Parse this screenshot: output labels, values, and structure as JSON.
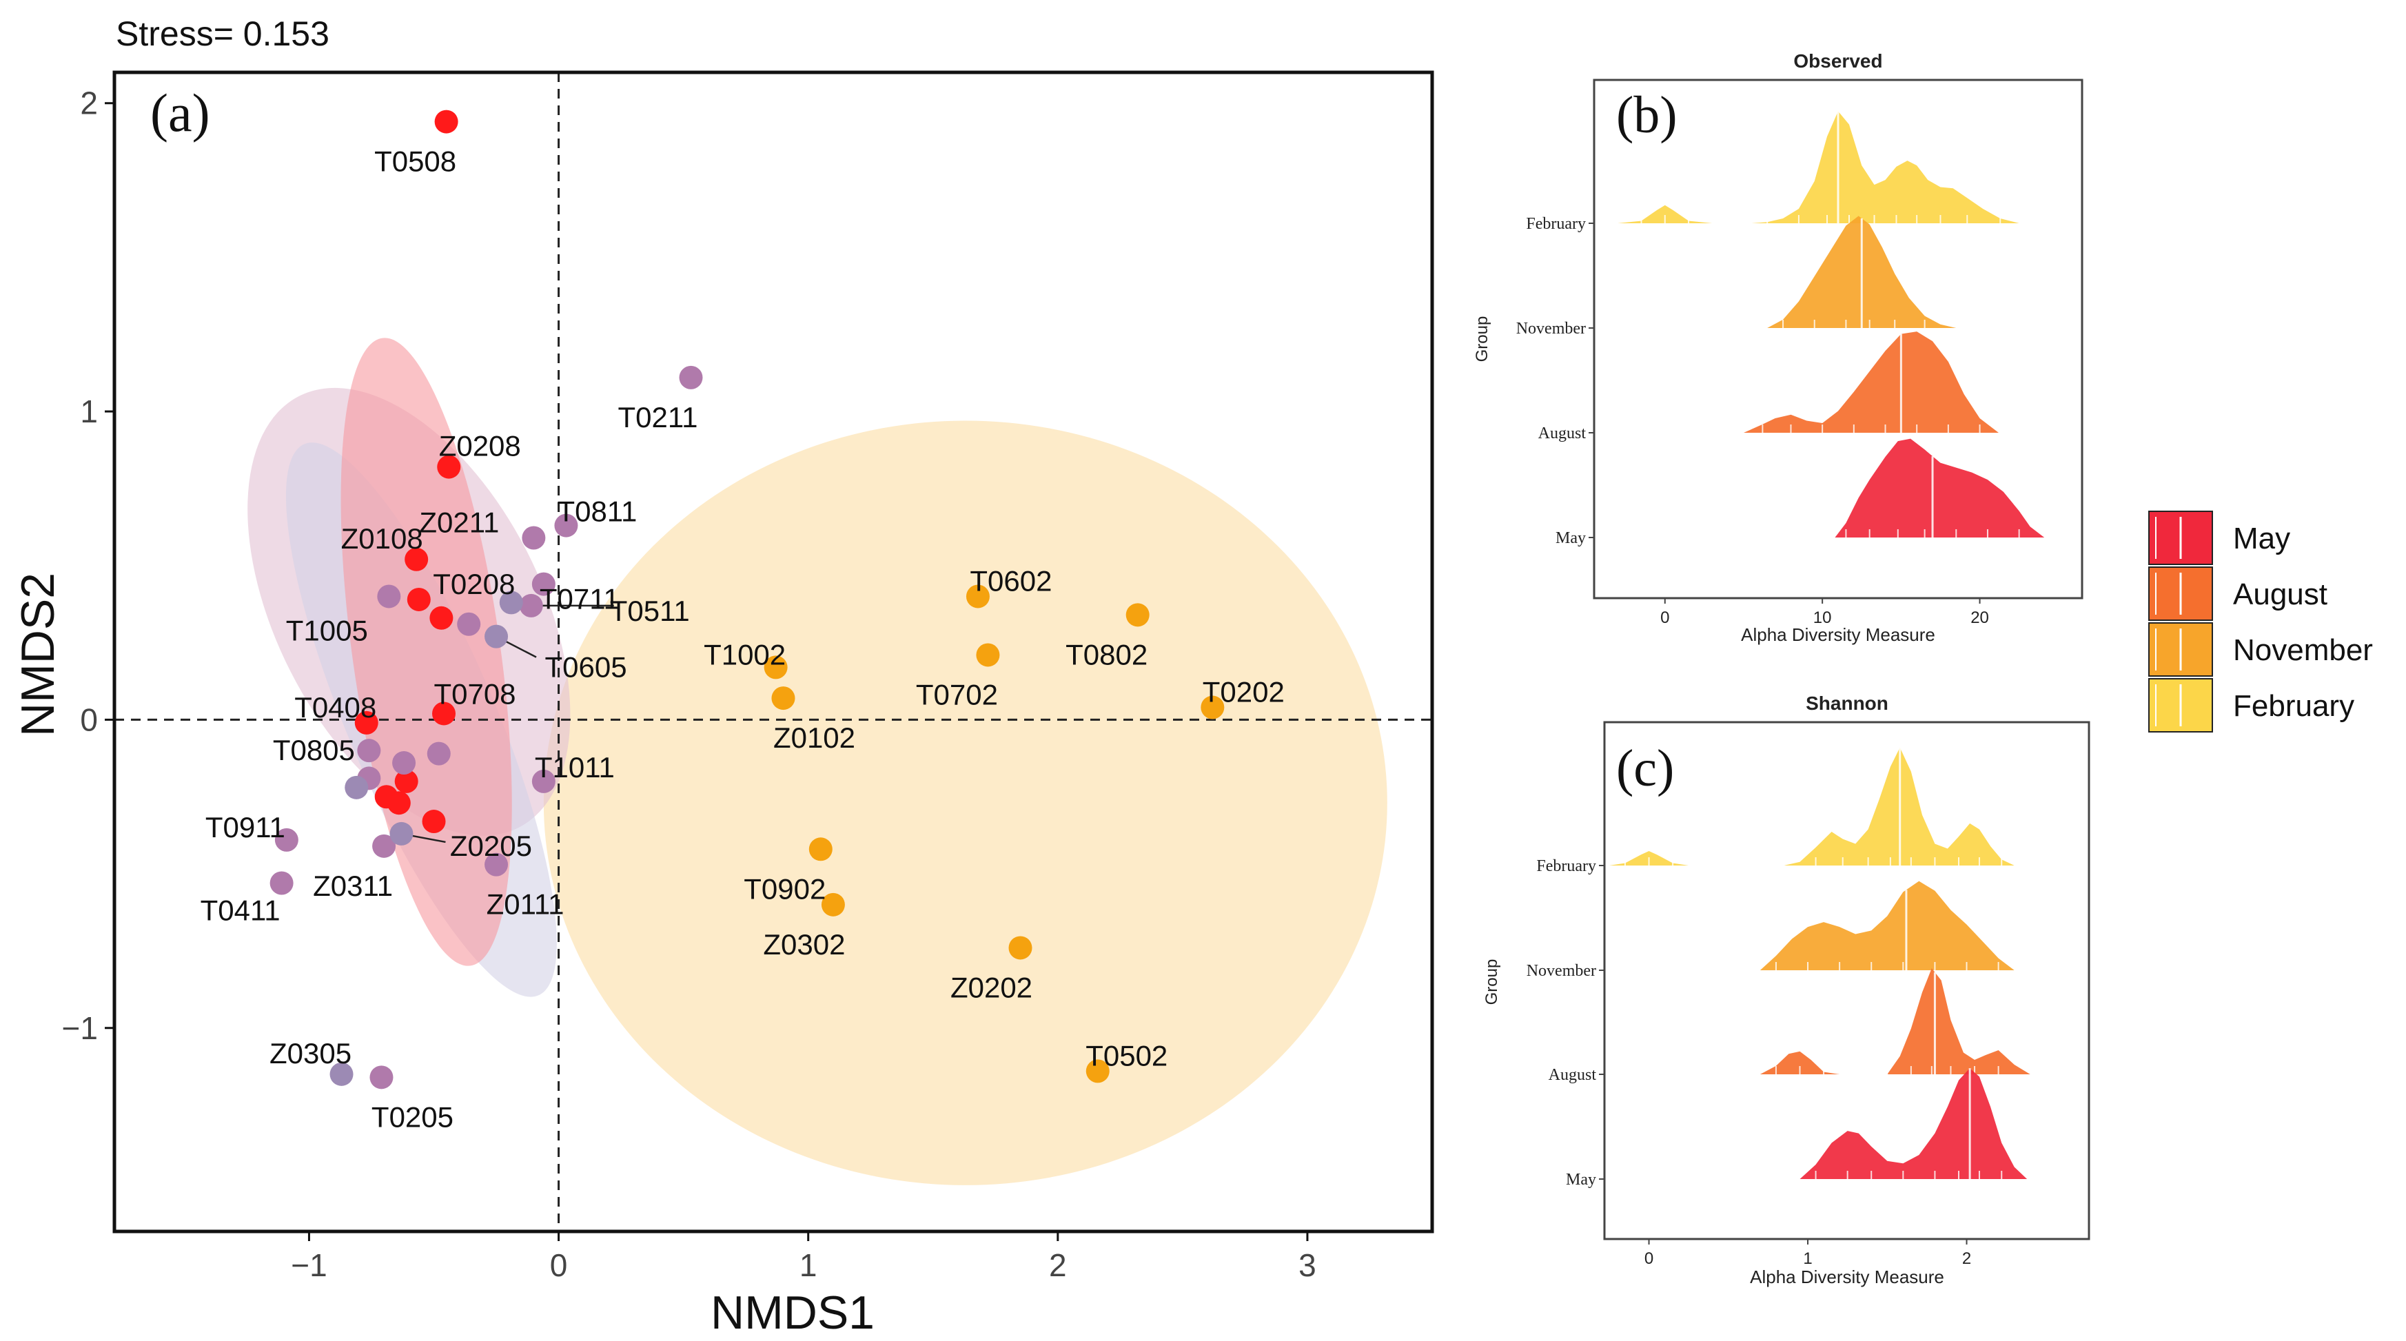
{
  "colors": {
    "May": "#f0283c",
    "August": "#f56f2e",
    "November": "#f7a52b",
    "February": "#fcd649",
    "orange_points": "#f5a20f",
    "red_points": "#ff1a1a",
    "purple_points": "#b07aab",
    "slate_points": "#9c8ab4",
    "ellipse_red": "#f79aa0",
    "ellipse_pink": "#e3c2d4",
    "ellipse_lavender": "#d4d2e6",
    "ellipse_orange": "#fde7bf"
  },
  "chart_data": [
    {
      "id": "a",
      "type": "scatter",
      "panel_label": "(a)",
      "stress_label": "Stress= 0.153",
      "xlabel": "NMDS1",
      "ylabel": "NMDS2",
      "xlim": [
        -1.78,
        3.5
      ],
      "ylim": [
        -1.66,
        2.1
      ],
      "xticks": [
        -1,
        0,
        1,
        2,
        3
      ],
      "xtick_labels": [
        "−1",
        "0",
        "1",
        "2",
        "3"
      ],
      "yticks": [
        -1,
        0,
        1,
        2
      ],
      "ytick_labels": [
        "−1",
        "0",
        "1",
        "2"
      ],
      "reference_lines": {
        "x": 0,
        "y": 0,
        "style": "dashed"
      },
      "ellipses": [
        {
          "cx": 1.63,
          "cy": -0.27,
          "rx": 1.69,
          "ry": 1.24,
          "angle": 0,
          "color": "ellipse_orange"
        },
        {
          "cx": -0.6,
          "cy": 0.35,
          "rx": 0.97,
          "ry": 0.43,
          "angle": 117,
          "color": "ellipse_pink"
        },
        {
          "cx": -0.55,
          "cy": 0.0,
          "rx": 1.2,
          "ry": 0.24,
          "angle": 113,
          "color": "ellipse_lavender"
        },
        {
          "cx": -0.53,
          "cy": 0.22,
          "rx": 1.27,
          "ry": 0.24,
          "angle": 98,
          "color": "ellipse_red"
        }
      ],
      "series": [
        {
          "name": "orange",
          "color": "orange_points",
          "points": [
            {
              "label": "T0602",
              "x": 1.68,
              "y": 0.4
            },
            {
              "label": "T0802",
              "x": 2.32,
              "y": 0.34
            },
            {
              "label": "T1002",
              "x": 0.87,
              "y": 0.17
            },
            {
              "label": "T0702",
              "x": 1.72,
              "y": 0.21
            },
            {
              "label": "T0202",
              "x": 2.62,
              "y": 0.04
            },
            {
              "label": "Z0102",
              "x": 0.9,
              "y": 0.07
            },
            {
              "label": "T0902",
              "x": 1.05,
              "y": -0.42
            },
            {
              "label": "Z0302",
              "x": 1.1,
              "y": -0.6
            },
            {
              "label": "Z0202",
              "x": 1.85,
              "y": -0.74
            },
            {
              "label": "T0502",
              "x": 2.16,
              "y": -1.14
            }
          ]
        },
        {
          "name": "red",
          "color": "red_points",
          "points": [
            {
              "label": "T0508",
              "x": -0.45,
              "y": 1.94
            },
            {
              "label": "Z0208",
              "x": -0.44,
              "y": 0.82
            },
            {
              "label": "Z0108",
              "x": -0.57,
              "y": 0.52
            },
            {
              "label": "T0208",
              "x": -0.56,
              "y": 0.39
            },
            {
              "label": "",
              "x": -0.47,
              "y": 0.33
            },
            {
              "label": "T0708",
              "x": -0.46,
              "y": 0.02
            },
            {
              "label": "T0408",
              "x": -0.77,
              "y": -0.01
            },
            {
              "label": "",
              "x": -0.61,
              "y": -0.2
            },
            {
              "label": "",
              "x": -0.69,
              "y": -0.25
            },
            {
              "label": "",
              "x": -0.64,
              "y": -0.27
            },
            {
              "label": "",
              "x": -0.5,
              "y": -0.33
            }
          ]
        },
        {
          "name": "purple",
          "color": "purple_points",
          "points": [
            {
              "label": "T0211",
              "x": 0.53,
              "y": 1.11
            },
            {
              "label": "T0811",
              "x": 0.03,
              "y": 0.63
            },
            {
              "label": "Z0211",
              "x": -0.1,
              "y": 0.59
            },
            {
              "label": "T0711",
              "x": -0.06,
              "y": 0.44
            },
            {
              "label": "T0511",
              "x": -0.11,
              "y": 0.37
            },
            {
              "label": "T1005",
              "x": -0.68,
              "y": 0.4
            },
            {
              "label": "",
              "x": -0.36,
              "y": 0.31
            },
            {
              "label": "T1011",
              "x": -0.06,
              "y": -0.2
            },
            {
              "label": "",
              "x": -0.48,
              "y": -0.11
            },
            {
              "label": "",
              "x": -0.62,
              "y": -0.14
            },
            {
              "label": "T0805",
              "x": -0.76,
              "y": -0.1
            },
            {
              "label": "",
              "x": -0.76,
              "y": -0.19
            },
            {
              "label": "T0911",
              "x": -1.09,
              "y": -0.39
            },
            {
              "label": "Z0311",
              "x": -0.7,
              "y": -0.41
            },
            {
              "label": "Z0111",
              "x": -0.25,
              "y": -0.47
            },
            {
              "label": "T0411",
              "x": -1.11,
              "y": -0.53
            },
            {
              "label": "T0205",
              "x": -0.71,
              "y": -1.16
            }
          ]
        },
        {
          "name": "slate",
          "color": "slate_points",
          "points": [
            {
              "label": "",
              "x": -0.19,
              "y": 0.38
            },
            {
              "label": "T0605",
              "x": -0.25,
              "y": 0.27
            },
            {
              "label": "",
              "x": -0.81,
              "y": -0.22
            },
            {
              "label": "Z0205",
              "x": -0.63,
              "y": -0.37
            },
            {
              "label": "Z0305",
              "x": -0.87,
              "y": -1.15
            }
          ]
        }
      ]
    },
    {
      "id": "b",
      "type": "area",
      "subtype": "ridgeline",
      "title": "Observed",
      "panel_label": "(b)",
      "xlabel": "Alpha Diversity Measure",
      "ylabel": "Group",
      "xlim": [
        -4.5,
        26.5
      ],
      "xticks": [
        0,
        10,
        20
      ],
      "xtick_labels": [
        "0",
        "10",
        "20"
      ],
      "groups": [
        "February",
        "November",
        "August",
        "May"
      ],
      "series": [
        {
          "name": "February",
          "color": "February",
          "median": 11,
          "scale": 1.15,
          "x": [
            -3,
            -1.5,
            -0.5,
            0,
            0.5,
            1.5,
            3,
            4.5,
            5.5,
            6.5,
            7.5,
            8.5,
            9.5,
            10.3,
            11,
            11.7,
            12.5,
            13.3,
            14,
            14.7,
            15.4,
            16,
            16.7,
            17.5,
            18.3,
            19.2,
            20.2,
            21.3,
            22.5
          ],
          "y": [
            0,
            0.02,
            0.11,
            0.15,
            0.11,
            0.02,
            0,
            0,
            0,
            0.01,
            0.04,
            0.12,
            0.35,
            0.72,
            0.93,
            0.82,
            0.48,
            0.32,
            0.36,
            0.47,
            0.52,
            0.48,
            0.36,
            0.3,
            0.29,
            0.21,
            0.12,
            0.04,
            0
          ]
        },
        {
          "name": "November",
          "color": "November",
          "median": 12.5,
          "scale": 1.15,
          "x": [
            6.5,
            7.5,
            8.5,
            9.5,
            10.5,
            11.5,
            12.3,
            13,
            13.8,
            14.6,
            15.5,
            16.5,
            17.5,
            18.5
          ],
          "y": [
            0,
            0.07,
            0.22,
            0.43,
            0.64,
            0.85,
            0.93,
            0.86,
            0.67,
            0.45,
            0.25,
            0.1,
            0.03,
            0
          ]
        },
        {
          "name": "August",
          "color": "August",
          "median": 15,
          "scale": 1.15,
          "x": [
            5,
            6.2,
            7,
            8,
            9,
            10,
            11,
            12,
            13,
            14,
            15,
            16,
            17,
            18,
            19,
            20,
            21.2
          ],
          "y": [
            0,
            0.07,
            0.12,
            0.15,
            0.1,
            0.08,
            0.18,
            0.34,
            0.51,
            0.68,
            0.82,
            0.84,
            0.76,
            0.59,
            0.32,
            0.12,
            0
          ]
        },
        {
          "name": "May",
          "color": "May",
          "median": 17,
          "scale": 1.15,
          "x": [
            10.8,
            11.5,
            12.3,
            13,
            14,
            14.8,
            15.6,
            16.5,
            17.5,
            18.5,
            19.5,
            20.5,
            21.5,
            22.5,
            23.2,
            24.1
          ],
          "y": [
            0,
            0.12,
            0.33,
            0.48,
            0.67,
            0.8,
            0.82,
            0.73,
            0.62,
            0.58,
            0.54,
            0.48,
            0.38,
            0.22,
            0.09,
            0
          ]
        }
      ]
    },
    {
      "id": "c",
      "type": "area",
      "subtype": "ridgeline",
      "title": "Shannon",
      "panel_label": "(c)",
      "xlabel": "Alpha Diversity Measure",
      "ylabel": "Group",
      "xlim": [
        -0.28,
        2.77
      ],
      "xticks": [
        0,
        1,
        2
      ],
      "xtick_labels": [
        "0",
        "1",
        "2"
      ],
      "groups": [
        "February",
        "November",
        "August",
        "May"
      ],
      "series": [
        {
          "name": "February",
          "color": "February",
          "median": 1.58,
          "scale": 1.15,
          "x": [
            -0.25,
            -0.15,
            -0.05,
            0,
            0.05,
            0.15,
            0.25,
            0.85,
            0.95,
            1.05,
            1.15,
            1.22,
            1.3,
            1.38,
            1.45,
            1.52,
            1.58,
            1.65,
            1.72,
            1.8,
            1.88,
            1.95,
            2.02,
            2.08,
            2.15,
            2.22,
            2.3
          ],
          "y": [
            0,
            0.02,
            0.09,
            0.12,
            0.09,
            0.02,
            0,
            0,
            0.03,
            0.15,
            0.28,
            0.22,
            0.18,
            0.3,
            0.55,
            0.82,
            0.98,
            0.78,
            0.42,
            0.18,
            0.14,
            0.24,
            0.35,
            0.3,
            0.16,
            0.05,
            0
          ]
        },
        {
          "name": "November",
          "color": "November",
          "median": 1.62,
          "scale": 1.15,
          "x": [
            0.7,
            0.8,
            0.9,
            1.0,
            1.1,
            1.2,
            1.3,
            1.4,
            1.5,
            1.6,
            1.7,
            1.8,
            1.9,
            2.0,
            2.1,
            2.2,
            2.3
          ],
          "y": [
            0,
            0.12,
            0.26,
            0.36,
            0.4,
            0.36,
            0.3,
            0.33,
            0.45,
            0.65,
            0.74,
            0.66,
            0.5,
            0.38,
            0.24,
            0.1,
            0
          ]
        },
        {
          "name": "August",
          "color": "August",
          "median": 1.8,
          "scale": 1.15,
          "x": [
            0.7,
            0.8,
            0.88,
            0.95,
            1.02,
            1.1,
            1.2,
            1.5,
            1.58,
            1.65,
            1.72,
            1.78,
            1.84,
            1.9,
            1.98,
            2.05,
            2.12,
            2.2,
            2.3,
            2.4
          ],
          "y": [
            0,
            0.07,
            0.17,
            0.19,
            0.12,
            0.02,
            0,
            0,
            0.15,
            0.38,
            0.68,
            0.88,
            0.78,
            0.45,
            0.18,
            0.12,
            0.16,
            0.2,
            0.08,
            0
          ]
        },
        {
          "name": "May",
          "color": "May",
          "median": 2.02,
          "scale": 1.15,
          "x": [
            0.95,
            1.05,
            1.15,
            1.25,
            1.32,
            1.4,
            1.5,
            1.6,
            1.7,
            1.8,
            1.88,
            1.95,
            2.02,
            2.08,
            2.15,
            2.22,
            2.3,
            2.38
          ],
          "y": [
            0,
            0.12,
            0.3,
            0.4,
            0.38,
            0.27,
            0.15,
            0.13,
            0.2,
            0.38,
            0.6,
            0.82,
            0.92,
            0.85,
            0.6,
            0.3,
            0.1,
            0
          ]
        }
      ]
    }
  ],
  "legend": {
    "items": [
      {
        "label": "May",
        "color": "May"
      },
      {
        "label": "August",
        "color": "August"
      },
      {
        "label": "November",
        "color": "November"
      },
      {
        "label": "February",
        "color": "February"
      }
    ]
  }
}
